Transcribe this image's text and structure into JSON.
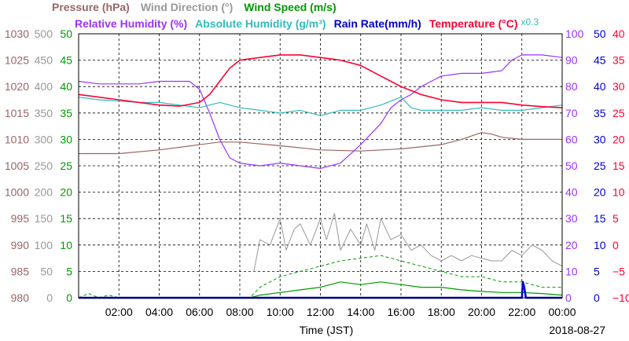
{
  "legend": {
    "row1": [
      {
        "text": "Pressure (hPa)",
        "color": "#996666"
      },
      {
        "text": "Wind Direction (°)",
        "color": "#999999"
      },
      {
        "text": "Wind Speed (m/s)",
        "color": "#009900"
      }
    ],
    "row2": [
      {
        "text": "Relative Humidity (%)",
        "color": "#9933ff"
      },
      {
        "text": "Absolute Humidity (g/m³)",
        "color": "#33bbbb"
      },
      {
        "text": "Rain Rate(mm/h)",
        "color": "#0000cc"
      },
      {
        "text": "Temperature (°C)",
        "color": "#ff0033"
      }
    ],
    "rain_scale_note": "x0.3"
  },
  "x_axis": {
    "label": "Time (JST)",
    "date": "2018-08-27",
    "ticks": [
      "02:00",
      "04:00",
      "06:00",
      "08:00",
      "10:00",
      "12:00",
      "14:00",
      "16:00",
      "18:00",
      "20:00",
      "22:00",
      "00:00"
    ]
  },
  "chart_data": {
    "type": "line",
    "x_unit": "hour (JST)",
    "xlim": [
      0,
      24
    ],
    "axes": [
      {
        "id": "pressure",
        "side": "left",
        "color": "#996666",
        "ylim": [
          980,
          1030
        ],
        "ticks": [
          980,
          985,
          990,
          995,
          1000,
          1005,
          1010,
          1015,
          1020,
          1025,
          1030
        ]
      },
      {
        "id": "wind_direction",
        "side": "left",
        "color": "#999999",
        "ylim": [
          0,
          500
        ],
        "ticks": [
          0,
          50,
          100,
          150,
          200,
          250,
          300,
          350,
          400,
          450,
          500
        ]
      },
      {
        "id": "wind_speed",
        "side": "left",
        "color": "#009900",
        "ylim": [
          0,
          50
        ],
        "ticks": [
          0,
          5,
          10,
          15,
          20,
          25,
          30,
          35,
          40,
          45,
          50
        ]
      },
      {
        "id": "humidity",
        "side": "right",
        "color": "#9933ff",
        "ylim": [
          0,
          100
        ],
        "ticks": [
          0,
          10,
          20,
          30,
          40,
          50,
          60,
          70,
          80,
          90,
          100
        ]
      },
      {
        "id": "rain",
        "side": "right",
        "color": "#0000cc",
        "ylim": [
          0,
          50
        ],
        "ticks": [
          0,
          5,
          10,
          15,
          20,
          25,
          30,
          35,
          40,
          45,
          50
        ]
      },
      {
        "id": "temperature",
        "side": "right",
        "color": "#ff0033",
        "ylim": [
          -10,
          40
        ],
        "ticks": [
          -10,
          -5,
          0,
          5,
          10,
          15,
          20,
          25,
          30,
          35,
          40
        ]
      }
    ],
    "series": [
      {
        "name": "Pressure (hPa)",
        "axis": "pressure",
        "color": "#996666",
        "x": [
          0,
          2,
          4,
          6,
          7,
          8,
          10,
          12,
          14,
          16,
          18,
          19,
          20,
          20.5,
          21,
          22,
          24
        ],
        "y": [
          1007.3,
          1007.3,
          1008,
          1009,
          1009.5,
          1009.5,
          1008.8,
          1008,
          1007.8,
          1008.2,
          1009,
          1010,
          1011.3,
          1011,
          1010.4,
          1010,
          1010
        ]
      },
      {
        "name": "Wind Direction (°)",
        "axis": "wind_direction",
        "color": "#999999",
        "x": [
          8.7,
          9,
          9.5,
          10,
          10.3,
          10.7,
          11,
          11.5,
          12,
          12.3,
          12.7,
          13,
          13.5,
          14,
          14.3,
          14.7,
          15,
          15.5,
          16,
          16.5,
          17,
          17.5,
          18,
          18.5,
          19,
          19.5,
          20,
          20.5,
          21,
          21.5,
          22,
          22.5,
          23,
          23.5,
          24
        ],
        "y": [
          50,
          110,
          100,
          150,
          90,
          130,
          140,
          100,
          150,
          110,
          160,
          90,
          130,
          100,
          140,
          90,
          150,
          110,
          120,
          90,
          100,
          80,
          70,
          80,
          70,
          80,
          75,
          70,
          70,
          90,
          80,
          100,
          90,
          70,
          60
        ]
      },
      {
        "name": "Wind Speed (m/s) avg",
        "axis": "wind_speed",
        "color": "#009900",
        "x": [
          0,
          8.5,
          9,
          10,
          11,
          12,
          13,
          14,
          15,
          16,
          17,
          18,
          19,
          20,
          21,
          22,
          23,
          24
        ],
        "y": [
          0,
          0,
          0.5,
          1,
          1.5,
          2,
          3,
          2.5,
          3,
          2.5,
          2,
          2,
          1.5,
          1.2,
          1,
          1,
          0.8,
          0.5
        ]
      },
      {
        "name": "Wind Speed (m/s) gust",
        "axis": "wind_speed",
        "color": "#009900",
        "x": [
          0,
          0.5,
          1,
          1.5,
          2,
          8.5,
          9,
          9.5,
          10,
          11,
          12,
          13,
          14,
          15,
          16,
          17,
          18,
          19,
          20,
          21,
          22,
          23,
          24
        ],
        "y": [
          0,
          0.8,
          0,
          0.5,
          0,
          0,
          2,
          3,
          4,
          5,
          6,
          7,
          7.5,
          8,
          7,
          6,
          5,
          4,
          4,
          3,
          3,
          2,
          2
        ]
      },
      {
        "name": "Relative Humidity (%)",
        "axis": "humidity",
        "color": "#9933ff",
        "x": [
          0,
          1,
          2,
          3,
          4,
          5,
          5.5,
          6,
          6.5,
          7,
          7.5,
          8,
          9,
          10,
          11,
          12,
          13,
          14,
          15,
          15.5,
          16,
          16.5,
          17,
          17.5,
          18,
          19,
          20,
          21,
          21.5,
          22,
          23,
          24
        ],
        "y": [
          82,
          81,
          81,
          81,
          82,
          82,
          82,
          79,
          70,
          60,
          53,
          51,
          50,
          51,
          50,
          49,
          51,
          58,
          66,
          72,
          75,
          77,
          80,
          82,
          84,
          85,
          85,
          86,
          90,
          92,
          92,
          91
        ]
      },
      {
        "name": "Absolute Humidity (g/m³)",
        "axis": "humidity",
        "color": "#33bbbb",
        "x": [
          0,
          1,
          2,
          3,
          4,
          5,
          6,
          6.5,
          7,
          7.5,
          8,
          9,
          10,
          11,
          12,
          13,
          14,
          15,
          16,
          16.5,
          17,
          18,
          19,
          20,
          21,
          22,
          23,
          24
        ],
        "y": [
          76,
          75,
          74.5,
          74,
          74,
          73,
          72,
          73,
          74,
          73,
          72,
          71,
          70,
          71,
          69,
          71,
          71,
          73,
          76,
          72,
          71,
          71,
          71,
          72,
          71,
          71,
          72,
          73
        ]
      },
      {
        "name": "Rain Rate(mm/h)",
        "axis": "rain",
        "color": "#0000cc",
        "x": [
          0,
          22,
          22.05,
          22.12,
          22.2,
          24
        ],
        "y": [
          0,
          0,
          3,
          2,
          0,
          0
        ]
      },
      {
        "name": "Temperature (°C)",
        "axis": "temperature",
        "color": "#ff0033",
        "x": [
          0,
          1,
          2,
          3,
          4,
          5,
          6,
          6.5,
          7,
          7.5,
          8,
          9,
          10,
          11,
          12,
          13,
          14,
          15,
          16,
          17,
          18,
          19,
          20,
          21,
          22,
          23,
          24
        ],
        "y": [
          28.5,
          28,
          27.5,
          27,
          26.5,
          26.3,
          27,
          28.5,
          31,
          33.5,
          35,
          35.5,
          36,
          36,
          35.5,
          35,
          34,
          32,
          30,
          28.5,
          27.5,
          27,
          27,
          27,
          26.5,
          26.2,
          26
        ]
      }
    ]
  }
}
